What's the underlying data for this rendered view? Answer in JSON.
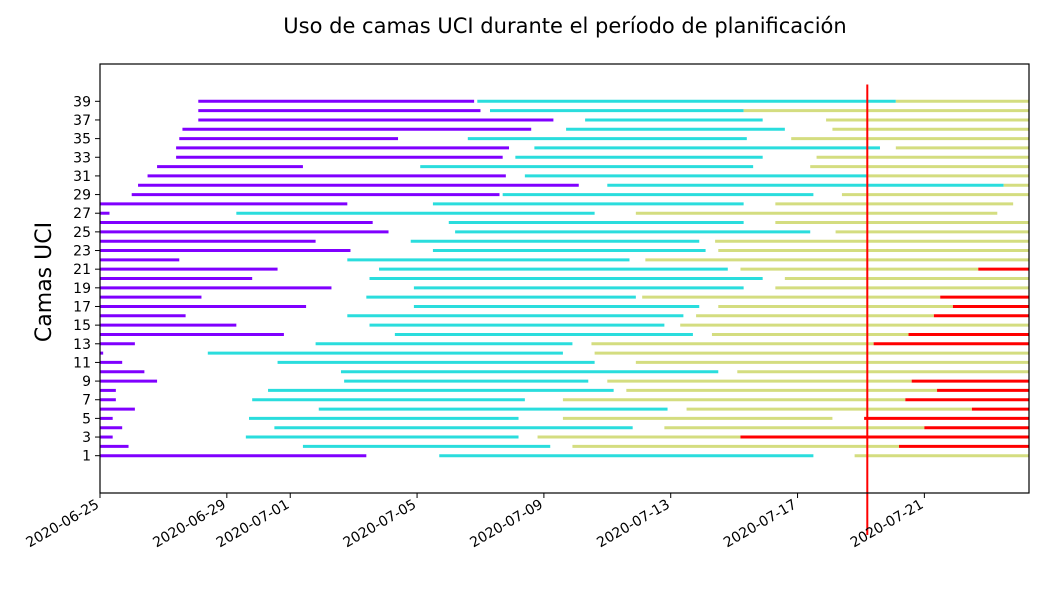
{
  "chart_data": {
    "type": "gantt",
    "title": "Uso de camas UCI durante el período de planificación",
    "ylabel": "Camas UCI",
    "xlabel": "",
    "x_ticks": [
      "2020-06-25",
      "2020-06-29",
      "2020-07-01",
      "2020-07-05",
      "2020-07-09",
      "2020-07-13",
      "2020-07-17",
      "2020-07-21"
    ],
    "xlim": [
      "2020-06-25",
      "2020-07-24.3"
    ],
    "y_ticks": [
      1,
      3,
      5,
      7,
      9,
      11,
      13,
      15,
      17,
      19,
      21,
      23,
      25,
      27,
      29,
      31,
      33,
      35,
      37,
      39
    ],
    "ylim": [
      -3,
      43
    ],
    "today_line": {
      "date": "2020-07-19.2",
      "y_range": [
        -7.5,
        40.8
      ]
    },
    "colors": {
      "purple": "#8000ff",
      "cyan": "#2adddd",
      "olive": "#d4dd80",
      "red": "#ff0000",
      "today": "#ff0000"
    },
    "beds": [
      {
        "bed": 1,
        "segments": [
          [
            "2020-06-25",
            "2020-07-03.4",
            "purple"
          ],
          [
            "2020-07-05.7",
            "2020-07-17.5",
            "cyan"
          ],
          [
            "2020-07-18.8",
            "2020-07-24.3",
            "olive"
          ]
        ]
      },
      {
        "bed": 2,
        "segments": [
          [
            "2020-06-25",
            "2020-06-25.9",
            "purple"
          ],
          [
            "2020-07-01.4",
            "2020-07-09.2",
            "cyan"
          ],
          [
            "2020-07-09.9",
            "2020-07-20.2",
            "olive"
          ],
          [
            "2020-07-20.2",
            "2020-07-24.3",
            "red"
          ]
        ]
      },
      {
        "bed": 3,
        "segments": [
          [
            "2020-06-25",
            "2020-06-25.4",
            "purple"
          ],
          [
            "2020-06-29.6",
            "2020-07-08.2",
            "cyan"
          ],
          [
            "2020-07-08.8",
            "2020-07-15.2",
            "olive"
          ],
          [
            "2020-07-15.2",
            "2020-07-24.3",
            "red"
          ]
        ]
      },
      {
        "bed": 4,
        "segments": [
          [
            "2020-06-25",
            "2020-06-25.7",
            "purple"
          ],
          [
            "2020-06-30.5",
            "2020-07-11.8",
            "cyan"
          ],
          [
            "2020-07-12.8",
            "2020-07-21",
            "olive"
          ],
          [
            "2020-07-21",
            "2020-07-24.3",
            "red"
          ]
        ]
      },
      {
        "bed": 5,
        "segments": [
          [
            "2020-06-25",
            "2020-06-25.4",
            "purple"
          ],
          [
            "2020-06-29.7",
            "2020-07-08.2",
            "cyan"
          ],
          [
            "2020-07-09.6",
            "2020-07-18.1",
            "olive"
          ],
          [
            "2020-07-19.1",
            "2020-07-24.3",
            "red"
          ]
        ]
      },
      {
        "bed": 6,
        "segments": [
          [
            "2020-06-25",
            "2020-06-26.1",
            "purple"
          ],
          [
            "2020-07-01.9",
            "2020-07-12.9",
            "cyan"
          ],
          [
            "2020-07-13.5",
            "2020-07-22.5",
            "olive"
          ],
          [
            "2020-07-22.5",
            "2020-07-24.3",
            "red"
          ]
        ]
      },
      {
        "bed": 7,
        "segments": [
          [
            "2020-06-25",
            "2020-06-25.5",
            "purple"
          ],
          [
            "2020-06-29.8",
            "2020-07-08.4",
            "cyan"
          ],
          [
            "2020-07-09.6",
            "2020-07-20.4",
            "olive"
          ],
          [
            "2020-07-20.4",
            "2020-07-24.3",
            "red"
          ]
        ]
      },
      {
        "bed": 8,
        "segments": [
          [
            "2020-06-25",
            "2020-06-25.5",
            "purple"
          ],
          [
            "2020-06-30.3",
            "2020-07-11.2",
            "cyan"
          ],
          [
            "2020-07-11.6",
            "2020-07-21.4",
            "olive"
          ],
          [
            "2020-07-21.4",
            "2020-07-24.3",
            "red"
          ]
        ]
      },
      {
        "bed": 9,
        "segments": [
          [
            "2020-06-25",
            "2020-06-26.8",
            "purple"
          ],
          [
            "2020-07-02.7",
            "2020-07-10.4",
            "cyan"
          ],
          [
            "2020-07-11",
            "2020-07-20.6",
            "olive"
          ],
          [
            "2020-07-20.6",
            "2020-07-24.3",
            "red"
          ]
        ]
      },
      {
        "bed": 10,
        "segments": [
          [
            "2020-06-25",
            "2020-06-26.4",
            "purple"
          ],
          [
            "2020-07-02.6",
            "2020-07-14.5",
            "cyan"
          ],
          [
            "2020-07-15.1",
            "2020-07-24.3",
            "olive"
          ]
        ]
      },
      {
        "bed": 11,
        "segments": [
          [
            "2020-06-25",
            "2020-06-25.7",
            "purple"
          ],
          [
            "2020-06-30.6",
            "2020-07-10.6",
            "cyan"
          ],
          [
            "2020-07-11.9",
            "2020-07-24.3",
            "olive"
          ]
        ]
      },
      {
        "bed": 12,
        "segments": [
          [
            "2020-06-25",
            "2020-06-25.1",
            "purple"
          ],
          [
            "2020-06-28.4",
            "2020-07-09.6",
            "cyan"
          ],
          [
            "2020-07-10.6",
            "2020-07-24.3",
            "olive"
          ]
        ]
      },
      {
        "bed": 13,
        "segments": [
          [
            "2020-06-25",
            "2020-06-26.1",
            "purple"
          ],
          [
            "2020-07-01.8",
            "2020-07-09.9",
            "cyan"
          ],
          [
            "2020-07-10.5",
            "2020-07-19.4",
            "olive"
          ],
          [
            "2020-07-19.4",
            "2020-07-24.3",
            "red"
          ]
        ]
      },
      {
        "bed": 14,
        "segments": [
          [
            "2020-06-25",
            "2020-06-30.8",
            "purple"
          ],
          [
            "2020-07-04.3",
            "2020-07-13.7",
            "cyan"
          ],
          [
            "2020-07-14.3",
            "2020-07-20.5",
            "olive"
          ],
          [
            "2020-07-20.5",
            "2020-07-24.3",
            "red"
          ]
        ]
      },
      {
        "bed": 15,
        "segments": [
          [
            "2020-06-25",
            "2020-06-29.3",
            "purple"
          ],
          [
            "2020-07-03.5",
            "2020-07-12.8",
            "cyan"
          ],
          [
            "2020-07-13.3",
            "2020-07-24.3",
            "olive"
          ]
        ]
      },
      {
        "bed": 16,
        "segments": [
          [
            "2020-06-25",
            "2020-06-27.7",
            "purple"
          ],
          [
            "2020-07-02.8",
            "2020-07-13.4",
            "cyan"
          ],
          [
            "2020-07-13.8",
            "2020-07-21.3",
            "olive"
          ],
          [
            "2020-07-21.3",
            "2020-07-24.3",
            "red"
          ]
        ]
      },
      {
        "bed": 17,
        "segments": [
          [
            "2020-06-25",
            "2020-07-01.5",
            "purple"
          ],
          [
            "2020-07-04.9",
            "2020-07-13.9",
            "cyan"
          ],
          [
            "2020-07-14.5",
            "2020-07-21.9",
            "olive"
          ],
          [
            "2020-07-21.9",
            "2020-07-24.3",
            "red"
          ]
        ]
      },
      {
        "bed": 18,
        "segments": [
          [
            "2020-06-25",
            "2020-06-28.2",
            "purple"
          ],
          [
            "2020-07-03.4",
            "2020-07-11.9",
            "cyan"
          ],
          [
            "2020-07-12.1",
            "2020-07-21.5",
            "olive"
          ],
          [
            "2020-07-21.5",
            "2020-07-24.3",
            "red"
          ]
        ]
      },
      {
        "bed": 19,
        "segments": [
          [
            "2020-06-25",
            "2020-07-02.3",
            "purple"
          ],
          [
            "2020-07-04.9",
            "2020-07-15.3",
            "cyan"
          ],
          [
            "2020-07-16.3",
            "2020-07-24.3",
            "olive"
          ]
        ]
      },
      {
        "bed": 20,
        "segments": [
          [
            "2020-06-25",
            "2020-06-29.8",
            "purple"
          ],
          [
            "2020-07-03.5",
            "2020-07-15.9",
            "cyan"
          ],
          [
            "2020-07-16.6",
            "2020-07-24.3",
            "olive"
          ]
        ]
      },
      {
        "bed": 21,
        "segments": [
          [
            "2020-06-25",
            "2020-06-30.6",
            "purple"
          ],
          [
            "2020-07-03.8",
            "2020-07-14.8",
            "cyan"
          ],
          [
            "2020-07-15.2",
            "2020-07-22.7",
            "olive"
          ],
          [
            "2020-07-22.7",
            "2020-07-24.3",
            "red"
          ]
        ]
      },
      {
        "bed": 22,
        "segments": [
          [
            "2020-06-25",
            "2020-06-27.5",
            "purple"
          ],
          [
            "2020-07-02.8",
            "2020-07-11.7",
            "cyan"
          ],
          [
            "2020-07-12.2",
            "2020-07-24.3",
            "olive"
          ]
        ]
      },
      {
        "bed": 23,
        "segments": [
          [
            "2020-06-25",
            "2020-07-02.9",
            "purple"
          ],
          [
            "2020-07-05.5",
            "2020-07-14.1",
            "cyan"
          ],
          [
            "2020-07-14.5",
            "2020-07-24.3",
            "olive"
          ]
        ]
      },
      {
        "bed": 24,
        "segments": [
          [
            "2020-06-25",
            "2020-07-01.8",
            "purple"
          ],
          [
            "2020-07-04.8",
            "2020-07-13.9",
            "cyan"
          ],
          [
            "2020-07-14.4",
            "2020-07-24.3",
            "olive"
          ]
        ]
      },
      {
        "bed": 25,
        "segments": [
          [
            "2020-06-25",
            "2020-07-04.1",
            "purple"
          ],
          [
            "2020-07-06.2",
            "2020-07-17.4",
            "cyan"
          ],
          [
            "2020-07-18.2",
            "2020-07-24.3",
            "olive"
          ]
        ]
      },
      {
        "bed": 26,
        "segments": [
          [
            "2020-06-25",
            "2020-07-03.6",
            "purple"
          ],
          [
            "2020-07-06",
            "2020-07-15.3",
            "cyan"
          ],
          [
            "2020-07-16.3",
            "2020-07-24.3",
            "olive"
          ]
        ]
      },
      {
        "bed": 27,
        "segments": [
          [
            "2020-06-25",
            "2020-06-25.3",
            "purple"
          ],
          [
            "2020-06-29.3",
            "2020-07-10.6",
            "cyan"
          ],
          [
            "2020-07-11.9",
            "2020-07-23.3",
            "olive"
          ]
        ]
      },
      {
        "bed": 28,
        "segments": [
          [
            "2020-06-25",
            "2020-07-02.8",
            "purple"
          ],
          [
            "2020-07-05.5",
            "2020-07-15.3",
            "cyan"
          ],
          [
            "2020-07-16.3",
            "2020-07-23.8",
            "olive"
          ]
        ]
      },
      {
        "bed": 29,
        "segments": [
          [
            "2020-06-26",
            "2020-07-07.6",
            "purple"
          ],
          [
            "2020-07-07.7",
            "2020-07-17.5",
            "cyan"
          ],
          [
            "2020-07-18.4",
            "2020-07-24.3",
            "olive"
          ]
        ]
      },
      {
        "bed": 30,
        "segments": [
          [
            "2020-06-26.2",
            "2020-07-10.1",
            "purple"
          ],
          [
            "2020-07-11",
            "2020-07-23.5",
            "cyan"
          ],
          [
            "2020-07-23.5",
            "2020-07-24.3",
            "olive"
          ]
        ]
      },
      {
        "bed": 31,
        "segments": [
          [
            "2020-06-26.5",
            "2020-07-07.8",
            "purple"
          ],
          [
            "2020-07-08.4",
            "2020-07-19.2",
            "cyan"
          ],
          [
            "2020-07-19.2",
            "2020-07-24.3",
            "olive"
          ]
        ]
      },
      {
        "bed": 32,
        "segments": [
          [
            "2020-06-26.8",
            "2020-07-01.4",
            "purple"
          ],
          [
            "2020-07-05.1",
            "2020-07-15.6",
            "cyan"
          ],
          [
            "2020-07-17.4",
            "2020-07-24.3",
            "olive"
          ]
        ]
      },
      {
        "bed": 33,
        "segments": [
          [
            "2020-06-27.4",
            "2020-07-07.7",
            "purple"
          ],
          [
            "2020-07-08.1",
            "2020-07-15.9",
            "cyan"
          ],
          [
            "2020-07-17.6",
            "2020-07-24.3",
            "olive"
          ]
        ]
      },
      {
        "bed": 34,
        "segments": [
          [
            "2020-06-27.4",
            "2020-07-07.9",
            "purple"
          ],
          [
            "2020-07-08.7",
            "2020-07-19.6",
            "cyan"
          ],
          [
            "2020-07-20.1",
            "2020-07-24.3",
            "olive"
          ]
        ]
      },
      {
        "bed": 35,
        "segments": [
          [
            "2020-06-27.5",
            "2020-07-04.4",
            "purple"
          ],
          [
            "2020-07-06.6",
            "2020-07-15.4",
            "cyan"
          ],
          [
            "2020-07-16.8",
            "2020-07-24.3",
            "olive"
          ]
        ]
      },
      {
        "bed": 36,
        "segments": [
          [
            "2020-06-27.6",
            "2020-07-08.6",
            "purple"
          ],
          [
            "2020-07-09.7",
            "2020-07-16.6",
            "cyan"
          ],
          [
            "2020-07-18.1",
            "2020-07-24.3",
            "olive"
          ]
        ]
      },
      {
        "bed": 37,
        "segments": [
          [
            "2020-06-28.1",
            "2020-07-09.3",
            "purple"
          ],
          [
            "2020-07-10.3",
            "2020-07-15.9",
            "cyan"
          ],
          [
            "2020-07-17.9",
            "2020-07-24.3",
            "olive"
          ]
        ]
      },
      {
        "bed": 38,
        "segments": [
          [
            "2020-06-28.1",
            "2020-07-07",
            "purple"
          ],
          [
            "2020-07-07.3",
            "2020-07-15.3",
            "cyan"
          ],
          [
            "2020-07-15.3",
            "2020-07-24.3",
            "olive"
          ]
        ]
      },
      {
        "bed": 39,
        "segments": [
          [
            "2020-06-28.1",
            "2020-07-06.8",
            "purple"
          ],
          [
            "2020-07-06.9",
            "2020-07-20.1",
            "cyan"
          ],
          [
            "2020-07-20.1",
            "2020-07-24.3",
            "olive"
          ]
        ]
      }
    ]
  }
}
